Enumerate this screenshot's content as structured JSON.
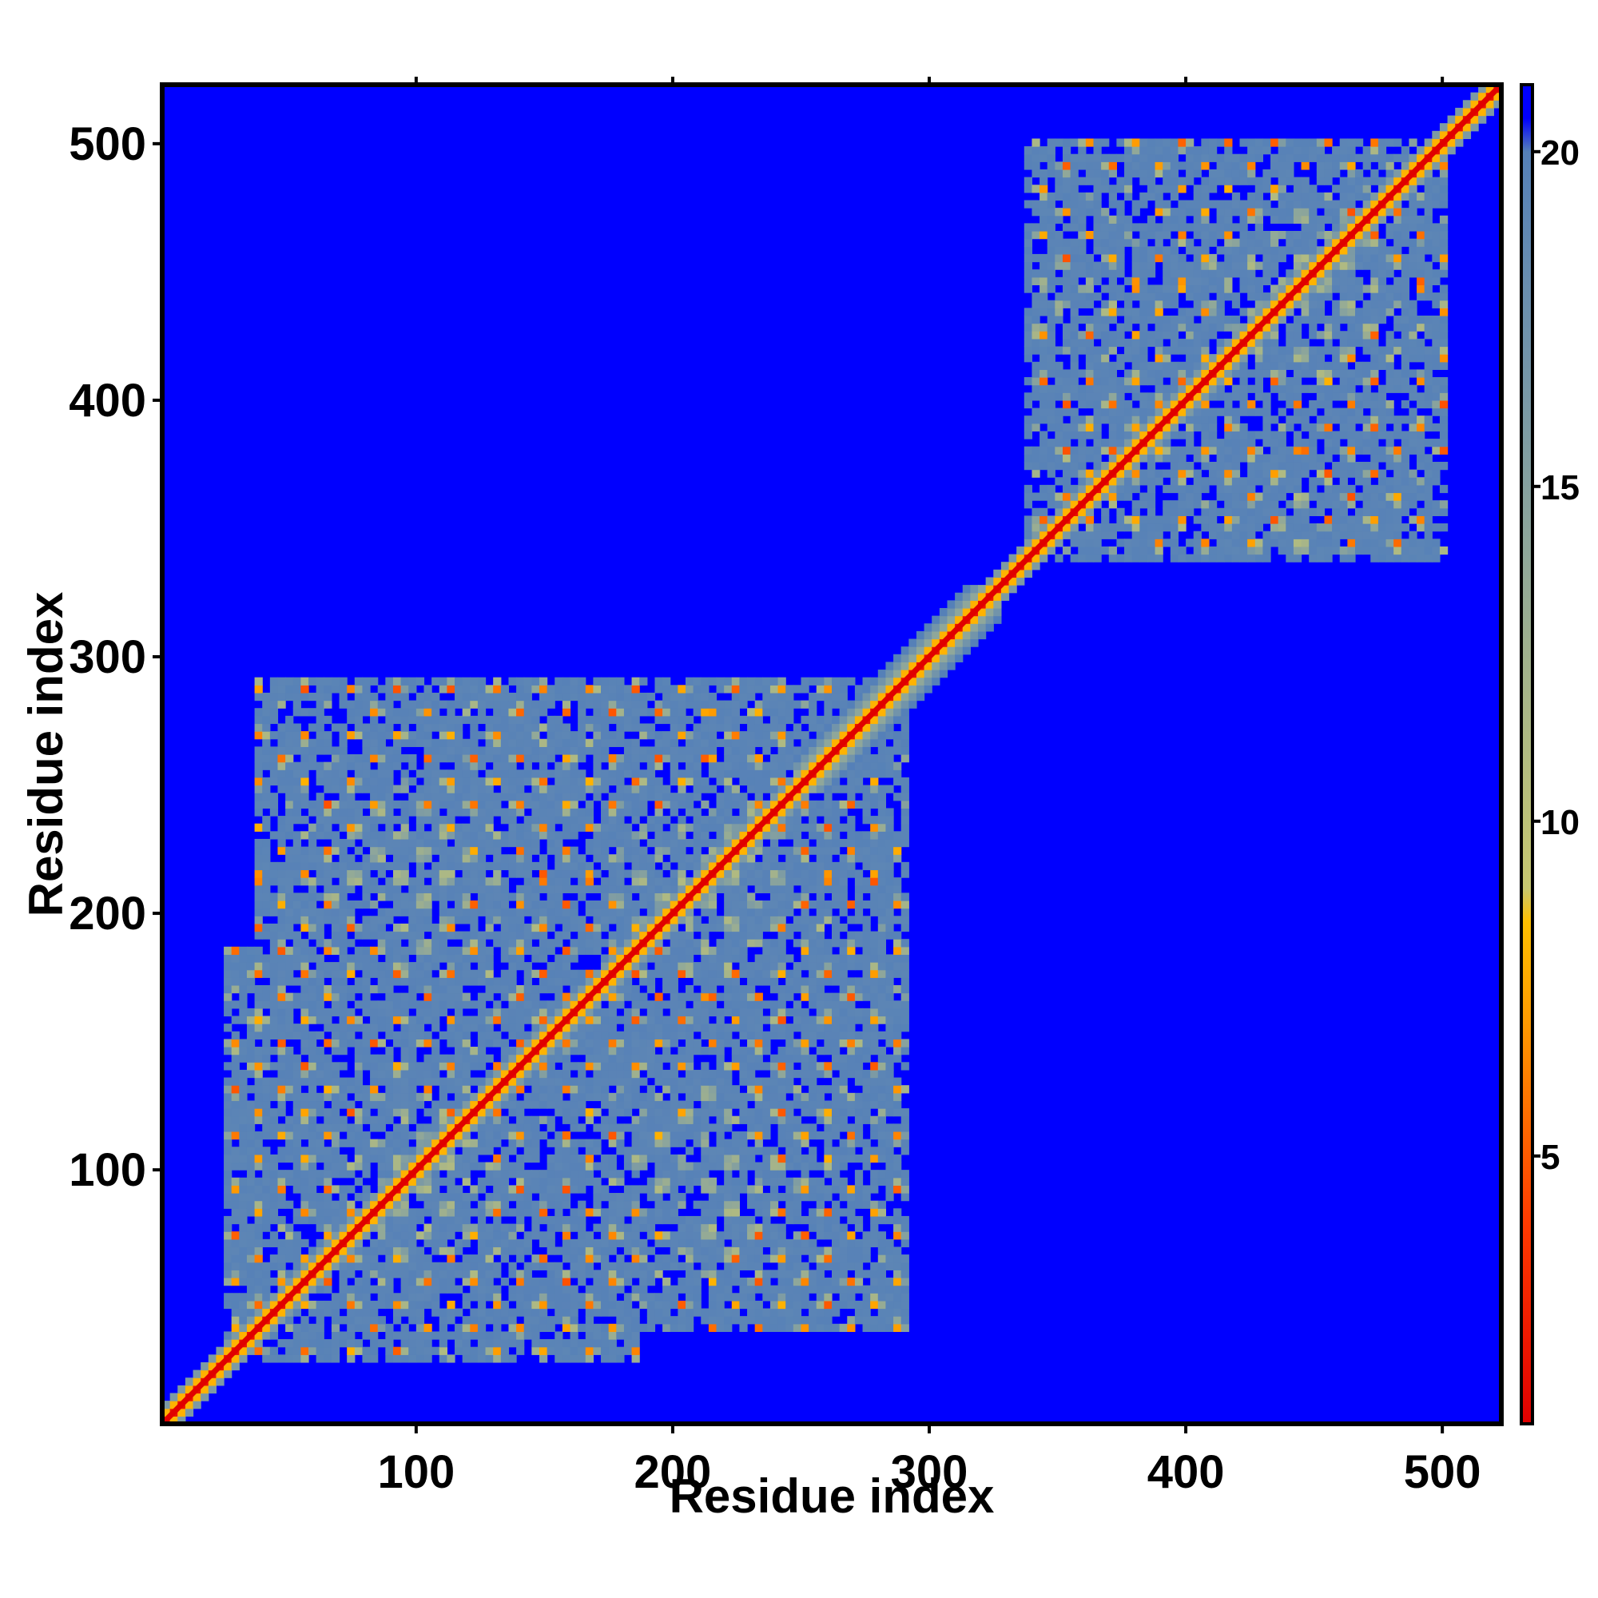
{
  "chart_data": {
    "type": "heatmap",
    "title": "",
    "xlabel": "Residue index",
    "ylabel": "Residue index",
    "xlim": [
      1,
      523
    ],
    "ylim": [
      1,
      523
    ],
    "x_ticks": [
      100,
      200,
      300,
      400,
      500
    ],
    "y_ticks": [
      100,
      200,
      300,
      400,
      500
    ],
    "colorbar": {
      "ticks": [
        5,
        10,
        15,
        20
      ],
      "range": [
        1,
        21
      ],
      "stops": [
        {
          "value": 1,
          "color": "#e00000"
        },
        {
          "value": 4,
          "color": "#ff3a00"
        },
        {
          "value": 7,
          "color": "#ff9a00"
        },
        {
          "value": 8.5,
          "color": "#ffbf00"
        },
        {
          "value": 9,
          "color": "#c8c870"
        },
        {
          "value": 14,
          "color": "#8fa79a"
        },
        {
          "value": 19,
          "color": "#5f87b4"
        },
        {
          "value": 20,
          "color": "#5580b8"
        },
        {
          "value": 20.5,
          "color": "#0000ff"
        }
      ]
    },
    "background_color": "#0000ff",
    "diagonal_color": "#e00000",
    "contact_region_color": "#5f87b4",
    "contact_regions": [
      {
        "x_range": [
          25,
          185
        ],
        "y_range": [
          25,
          185
        ]
      },
      {
        "x_range": [
          150,
          245
        ],
        "y_range": [
          150,
          245
        ]
      },
      {
        "x_range": [
          35,
          290
        ],
        "y_range": [
          35,
          290
        ]
      },
      {
        "x_range": [
          335,
          495
        ],
        "y_range": [
          335,
          500
        ]
      }
    ],
    "secondary_diagonal_segments": [
      {
        "x_range": [
          245,
          325
        ],
        "y_range": [
          245,
          325
        ]
      }
    ]
  }
}
